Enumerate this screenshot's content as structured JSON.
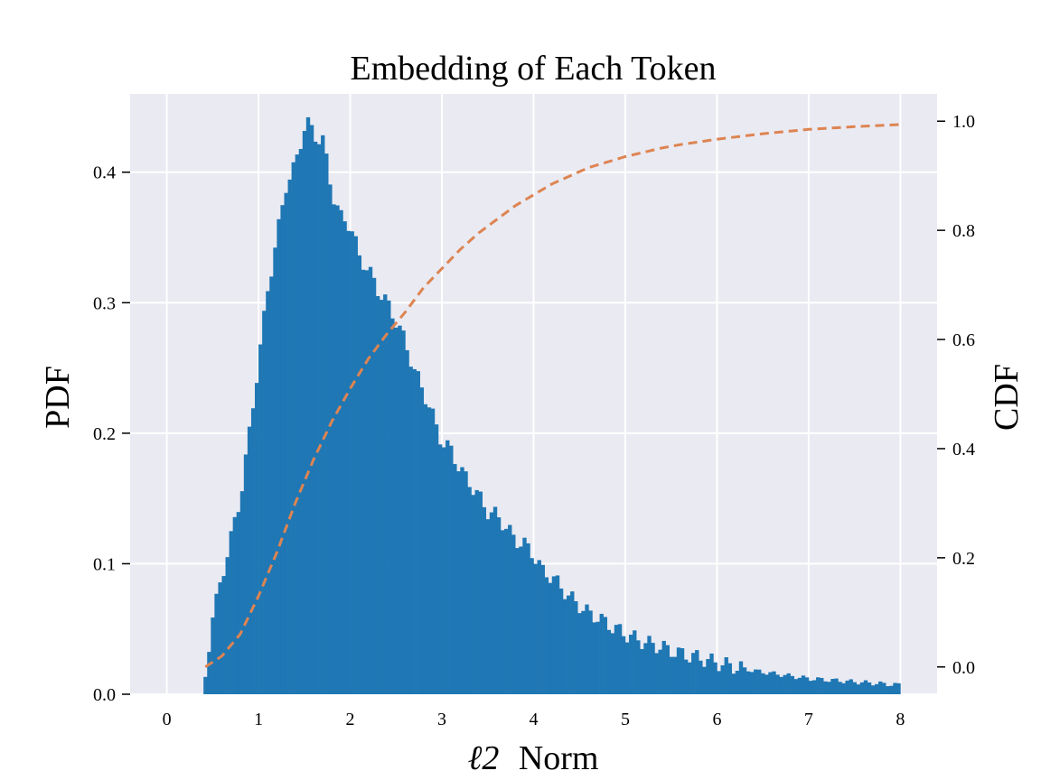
{
  "chart_data": {
    "type": "bar",
    "title": "Embedding  of Each Token",
    "xlabel": "Norm",
    "xlabel_math": "ℓ2",
    "ylabel_left": "PDF",
    "ylabel_right": "CDF",
    "xlim": [
      -0.4,
      8.4
    ],
    "ylim_left": [
      0,
      0.46
    ],
    "ylim_right": [
      -0.05,
      1.05
    ],
    "x_ticks": [
      0,
      1,
      2,
      3,
      4,
      5,
      6,
      7,
      8
    ],
    "y_ticks_left": [
      0.0,
      0.1,
      0.2,
      0.3,
      0.4
    ],
    "y_ticks_right": [
      0.0,
      0.2,
      0.4,
      0.6,
      0.8,
      1.0
    ],
    "grid": true,
    "colors": {
      "background": "#eaeaf2",
      "bars": "#1f77b4",
      "cdf_line": "#dd8452",
      "grid": "#ffffff"
    },
    "series": [
      {
        "kind": "histogram",
        "axis": "left",
        "bin_width": 0.04,
        "bin_edges_range": [
          0.4,
          8.0
        ],
        "points": [
          [
            0.4,
            0.0
          ],
          [
            0.45,
            0.033
          ],
          [
            0.5,
            0.06
          ],
          [
            0.55,
            0.074
          ],
          [
            0.6,
            0.09
          ],
          [
            0.7,
            0.12
          ],
          [
            0.8,
            0.15
          ],
          [
            0.9,
            0.2
          ],
          [
            1.0,
            0.255
          ],
          [
            1.1,
            0.31
          ],
          [
            1.2,
            0.35
          ],
          [
            1.3,
            0.39
          ],
          [
            1.4,
            0.405
          ],
          [
            1.5,
            0.435
          ],
          [
            1.55,
            0.438
          ],
          [
            1.6,
            0.428
          ],
          [
            1.7,
            0.425
          ],
          [
            1.8,
            0.385
          ],
          [
            1.9,
            0.365
          ],
          [
            2.0,
            0.36
          ],
          [
            2.1,
            0.335
          ],
          [
            2.2,
            0.325
          ],
          [
            2.3,
            0.31
          ],
          [
            2.4,
            0.3
          ],
          [
            2.5,
            0.286
          ],
          [
            2.6,
            0.27
          ],
          [
            2.7,
            0.248
          ],
          [
            2.8,
            0.232
          ],
          [
            2.9,
            0.213
          ],
          [
            3.0,
            0.193
          ],
          [
            3.1,
            0.187
          ],
          [
            3.2,
            0.172
          ],
          [
            3.3,
            0.162
          ],
          [
            3.4,
            0.152
          ],
          [
            3.5,
            0.14
          ],
          [
            3.6,
            0.137
          ],
          [
            3.7,
            0.128
          ],
          [
            3.8,
            0.118
          ],
          [
            3.9,
            0.115
          ],
          [
            4.0,
            0.107
          ],
          [
            4.1,
            0.094
          ],
          [
            4.2,
            0.09
          ],
          [
            4.3,
            0.082
          ],
          [
            4.4,
            0.074
          ],
          [
            4.5,
            0.068
          ],
          [
            4.6,
            0.062
          ],
          [
            4.7,
            0.059
          ],
          [
            4.8,
            0.054
          ],
          [
            4.9,
            0.05
          ],
          [
            5.0,
            0.046
          ],
          [
            5.2,
            0.04
          ],
          [
            5.4,
            0.036
          ],
          [
            5.6,
            0.031
          ],
          [
            5.8,
            0.028
          ],
          [
            6.0,
            0.024
          ],
          [
            6.2,
            0.021
          ],
          [
            6.4,
            0.018
          ],
          [
            6.6,
            0.016
          ],
          [
            6.8,
            0.014
          ],
          [
            7.0,
            0.012
          ],
          [
            7.2,
            0.011
          ],
          [
            7.4,
            0.01
          ],
          [
            7.6,
            0.009
          ],
          [
            7.8,
            0.008
          ],
          [
            8.0,
            0.007
          ]
        ]
      },
      {
        "kind": "line",
        "axis": "right",
        "style": "dashed",
        "points": [
          [
            0.42,
            0.0
          ],
          [
            0.6,
            0.02
          ],
          [
            0.8,
            0.06
          ],
          [
            1.0,
            0.13
          ],
          [
            1.2,
            0.21
          ],
          [
            1.4,
            0.3
          ],
          [
            1.6,
            0.38
          ],
          [
            1.8,
            0.45
          ],
          [
            2.0,
            0.51
          ],
          [
            2.2,
            0.565
          ],
          [
            2.4,
            0.61
          ],
          [
            2.6,
            0.65
          ],
          [
            2.8,
            0.695
          ],
          [
            3.0,
            0.73
          ],
          [
            3.2,
            0.765
          ],
          [
            3.4,
            0.795
          ],
          [
            3.6,
            0.82
          ],
          [
            3.8,
            0.845
          ],
          [
            4.0,
            0.865
          ],
          [
            4.2,
            0.885
          ],
          [
            4.4,
            0.9
          ],
          [
            4.6,
            0.915
          ],
          [
            4.8,
            0.925
          ],
          [
            5.0,
            0.935
          ],
          [
            5.2,
            0.943
          ],
          [
            5.4,
            0.951
          ],
          [
            5.6,
            0.957
          ],
          [
            5.8,
            0.962
          ],
          [
            6.0,
            0.967
          ],
          [
            6.5,
            0.977
          ],
          [
            7.0,
            0.985
          ],
          [
            7.5,
            0.99
          ],
          [
            8.0,
            0.994
          ]
        ]
      }
    ]
  }
}
